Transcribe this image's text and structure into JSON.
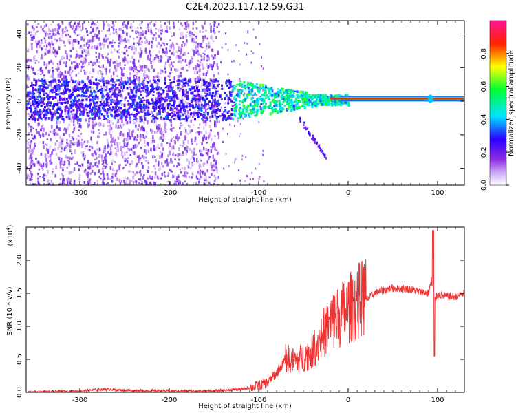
{
  "figure": {
    "title": "C2E4.2023.117.12.59.G31"
  },
  "chart_data": [
    {
      "type": "heatmap",
      "xlabel": "Height of straight line (km)",
      "ylabel": "Frequency (Hz)",
      "xlim": [
        -360,
        130
      ],
      "ylim": [
        -50,
        48
      ],
      "xticks": [
        -300,
        -200,
        -100,
        0,
        100
      ],
      "yticks": [
        -40,
        -20,
        0,
        20,
        40
      ],
      "colorbar": {
        "label": "Normalized spectral amplitude",
        "range": [
          0,
          1
        ],
        "ticks": [
          "0.0",
          "0.2",
          "0.4",
          "0.6",
          "0.8"
        ],
        "colormap": [
          "#ffffff",
          "#8a2be2",
          "#0000ff",
          "#00ffff",
          "#00ff00",
          "#ffff00",
          "#ff0000",
          "#ff1493"
        ]
      },
      "features": {
        "dense_band_center_hz": 1.5,
        "noise_region_end_km": -145,
        "signal_start_km": -130,
        "strong_line_start_km": -20
      }
    },
    {
      "type": "line",
      "xlabel": "Height of straight line (km)",
      "ylabel": "SNR (10 * v/v)",
      "y_multiplier": "(x10",
      "y_multiplier_exp": "4",
      "y_multiplier_close": ")",
      "xlim": [
        -360,
        130
      ],
      "ylim": [
        0,
        2.5
      ],
      "xticks": [
        -300,
        -200,
        -100,
        0,
        100
      ],
      "yticks": [
        "0.0",
        "0.5",
        "1.0",
        "1.5",
        "2.0"
      ],
      "color": "#ee3333",
      "series": [
        {
          "x": [
            -360,
            -300,
            -270,
            -250,
            -200,
            -150,
            -120,
            -110,
            -100,
            -90,
            -80,
            -70,
            -60,
            -50,
            -40,
            -30,
            -20,
            -10,
            0,
            10,
            20,
            30,
            40,
            50,
            60,
            70,
            80,
            90,
            93,
            95,
            97,
            100,
            110,
            120,
            130
          ],
          "y": [
            0.0,
            0.02,
            0.05,
            0.03,
            0.02,
            0.02,
            0.05,
            0.07,
            0.1,
            0.15,
            0.3,
            0.5,
            0.45,
            0.5,
            0.6,
            0.8,
            1.0,
            1.1,
            1.2,
            1.3,
            1.4,
            1.5,
            1.55,
            1.58,
            1.57,
            1.56,
            1.52,
            1.5,
            1.7,
            1.5,
            1.4,
            1.48,
            1.45,
            1.45,
            1.5
          ]
        }
      ]
    }
  ]
}
